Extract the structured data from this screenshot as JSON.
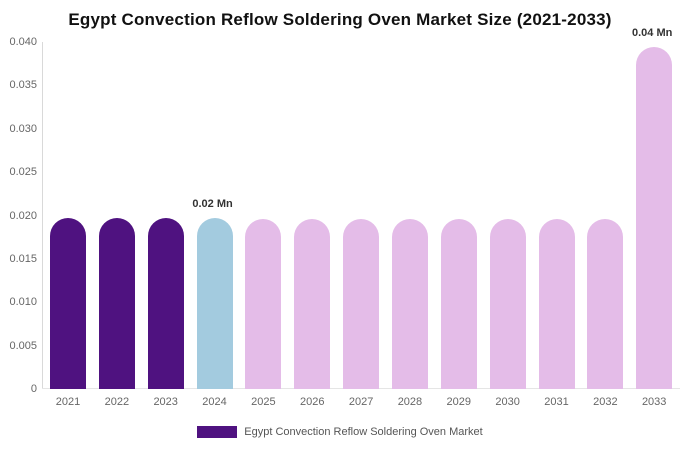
{
  "chart": {
    "title": "Egypt Convection Reflow Soldering Oven Market Size (2021-2033)",
    "legend": {
      "label": "Egypt Convection Reflow Soldering Oven Market",
      "swatch_color": "#4F1280"
    }
  },
  "chart_data": {
    "type": "bar",
    "title": "Egypt Convection Reflow Soldering Oven Market Size (2021-2033)",
    "xlabel": "",
    "ylabel": "",
    "categories": [
      "2021",
      "2022",
      "2023",
      "2024",
      "2025",
      "2026",
      "2027",
      "2028",
      "2029",
      "2030",
      "2031",
      "2032",
      "2033"
    ],
    "values": [
      0.0197,
      0.0197,
      0.0197,
      0.0197,
      0.0196,
      0.0196,
      0.0196,
      0.0196,
      0.0196,
      0.0196,
      0.0196,
      0.0196,
      0.0394
    ],
    "bar_colors": [
      "#4F1280",
      "#4F1280",
      "#4F1280",
      "#A3CBDF",
      "#E4BCE8",
      "#E4BCE8",
      "#E4BCE8",
      "#E4BCE8",
      "#E4BCE8",
      "#E4BCE8",
      "#E4BCE8",
      "#E4BCE8",
      "#E4BCE8"
    ],
    "color_legend": {
      "historical": "#4F1280",
      "base_year": "#A3CBDF",
      "forecast": "#E4BCE8"
    },
    "ylim": [
      0,
      0.04
    ],
    "yticks": [
      0,
      0.005,
      0.01,
      0.015,
      0.02,
      0.025,
      0.03,
      0.035,
      0.04
    ],
    "ytick_labels": [
      "0",
      "0.005",
      "0.010",
      "0.015",
      "0.020",
      "0.025",
      "0.030",
      "0.035",
      "0.040"
    ],
    "grid": false,
    "legend_position": "bottom",
    "legend_entries": [
      "Egypt Convection Reflow Soldering Oven Market"
    ],
    "annotations": [
      {
        "category": "2024",
        "text": "0.02 Mn"
      },
      {
        "category": "2033",
        "text": "0.04 Mn"
      }
    ]
  }
}
